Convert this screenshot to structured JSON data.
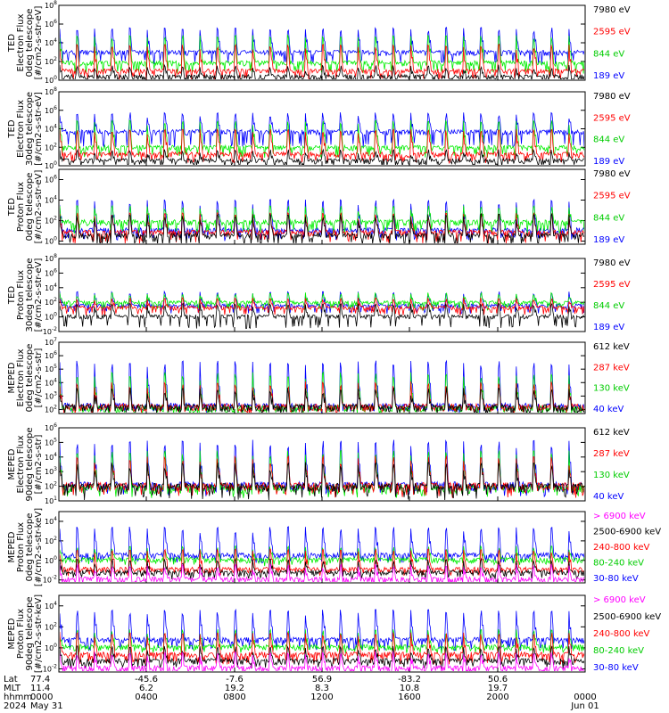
{
  "colors": {
    "black": "#000000",
    "red": "#ff0000",
    "green": "#00ee00",
    "blue": "#0000ff",
    "magenta": "#ff00ff"
  },
  "chart_data": [
    {
      "type": "line",
      "ylabel": [
        "TED",
        "Electron Flux",
        "0deg telescope",
        "[#/cm2-s-str-eV]"
      ],
      "yscale": "log",
      "yticks": [
        "10^0",
        "10^2",
        "10^4",
        "10^6",
        "10^8"
      ],
      "ylim": [
        1,
        100000000
      ],
      "series": [
        {
          "name": "7980 eV",
          "color": "black",
          "base": 2,
          "spike": 30,
          "low": 1,
          "values": [
            2,
            4,
            30,
            2,
            3,
            25,
            2,
            5,
            40,
            3,
            2,
            20
          ]
        },
        {
          "name": "2595 eV",
          "color": "red",
          "base": 8,
          "spike": 5000,
          "low": 2,
          "values": [
            8,
            20,
            5000,
            10,
            12,
            4000,
            8,
            30,
            6000,
            9,
            10,
            3000
          ]
        },
        {
          "name": "844 eV",
          "color": "green",
          "base": 60,
          "spike": 50000,
          "low": 10,
          "values": [
            60,
            200,
            50000,
            70,
            80,
            40000,
            60,
            300,
            60000,
            70,
            60,
            30000
          ]
        },
        {
          "name": "189 eV",
          "color": "blue",
          "base": 800,
          "spike": 300000,
          "low": 100,
          "values": [
            800,
            2000,
            300000,
            900,
            1000,
            200000,
            800,
            3000,
            400000,
            900,
            800,
            150000
          ]
        }
      ]
    },
    {
      "type": "line",
      "ylabel": [
        "TED",
        "Electron Flux",
        "30deg telescope",
        "[#/cm2-s-str-eV]"
      ],
      "yscale": "log",
      "yticks": [
        "10^0",
        "10^2",
        "10^4",
        "10^6",
        "10^8"
      ],
      "ylim": [
        1,
        100000000
      ],
      "series": [
        {
          "name": "7980 eV",
          "color": "black",
          "base": 3,
          "spike": 40,
          "low": 1,
          "values": [
            3,
            5,
            40,
            3,
            4,
            30,
            3,
            6,
            45,
            4,
            3,
            25
          ]
        },
        {
          "name": "2595 eV",
          "color": "red",
          "base": 15,
          "spike": 6000,
          "low": 4,
          "values": [
            15,
            40,
            6000,
            18,
            20,
            5000,
            15,
            50,
            7000,
            16,
            15,
            4000
          ]
        },
        {
          "name": "844 eV",
          "color": "green",
          "base": 80,
          "spike": 60000,
          "low": 15,
          "values": [
            80,
            250,
            60000,
            90,
            100,
            50000,
            80,
            400,
            70000,
            90,
            80,
            40000
          ]
        },
        {
          "name": "189 eV",
          "color": "blue",
          "base": 4000,
          "spike": 400000,
          "low": 200,
          "values": [
            4000,
            6000,
            400000,
            3000,
            4500,
            300000,
            3500,
            7000,
            500000,
            3800,
            4000,
            250000
          ]
        }
      ]
    },
    {
      "type": "line",
      "ylabel": [
        "TED",
        "Proton Flux",
        "0deg telescope",
        "[#/cm2-s-str-eV]"
      ],
      "yscale": "log",
      "yticks": [
        "10^0",
        "10^2",
        "10^4",
        "10^6"
      ],
      "ylim": [
        0.5,
        10000000
      ],
      "series": [
        {
          "name": "7980 eV",
          "color": "black",
          "base": 3,
          "spike": 300,
          "low": 0.6,
          "values": [
            3,
            5,
            300,
            4,
            3,
            200,
            3,
            6,
            400,
            4,
            3,
            150
          ]
        },
        {
          "name": "2595 eV",
          "color": "red",
          "base": 6,
          "spike": 400,
          "low": 1,
          "values": [
            6,
            10,
            400,
            7,
            6,
            300,
            6,
            12,
            500,
            7,
            6,
            250
          ]
        },
        {
          "name": "844 eV",
          "color": "green",
          "base": 60,
          "spike": 2000,
          "low": 10,
          "values": [
            60,
            150,
            2000,
            80,
            60,
            1500,
            60,
            200,
            2500,
            70,
            60,
            1200
          ]
        },
        {
          "name": "189 eV",
          "color": "blue",
          "base": 10,
          "spike": 8000,
          "low": 2,
          "values": [
            10,
            30,
            8000,
            12,
            10,
            6000,
            10,
            40,
            10000,
            12,
            10,
            5000
          ]
        }
      ]
    },
    {
      "type": "line",
      "ylabel": [
        "TED",
        "Proton Flux",
        "30deg telescope",
        "[#/cm2-s-str-eV]"
      ],
      "yscale": "log",
      "yticks": [
        "10^-2",
        "10^0",
        "10^2",
        "10^4",
        "10^6",
        "10^8"
      ],
      "ylim": [
        0.01,
        100000000
      ],
      "series": [
        {
          "name": "7980 eV",
          "color": "black",
          "base": 1,
          "spike": 50,
          "low": 0.05,
          "values": [
            1,
            2,
            50,
            1,
            1,
            40,
            1,
            3,
            60,
            1,
            1,
            30
          ]
        },
        {
          "name": "2595 eV",
          "color": "red",
          "base": 15,
          "spike": 300,
          "low": 3,
          "values": [
            15,
            25,
            300,
            15,
            15,
            250,
            15,
            30,
            350,
            15,
            15,
            200
          ]
        },
        {
          "name": "844 eV",
          "color": "green",
          "base": 80,
          "spike": 1500,
          "low": 15,
          "values": [
            80,
            150,
            1500,
            90,
            80,
            1200,
            80,
            200,
            1800,
            90,
            80,
            1000
          ]
        },
        {
          "name": "189 eV",
          "color": "blue",
          "base": 30,
          "spike": 2000,
          "low": 5,
          "values": [
            30,
            60,
            2000,
            35,
            30,
            1500,
            30,
            80,
            2500,
            35,
            30,
            1200
          ]
        }
      ]
    },
    {
      "type": "line",
      "ylabel": [
        "MEPED",
        "Electron Flux",
        "0deg telescope",
        "[#/cm2-s-str]"
      ],
      "yscale": "log",
      "yticks": [
        "10^2",
        "10^3",
        "10^4",
        "10^5",
        "10^6",
        "10^7"
      ],
      "ylim": [
        50,
        10000000
      ],
      "series": [
        {
          "name": "612 keV",
          "color": "black",
          "base": 120,
          "spike": 3000,
          "low": 80,
          "values": [
            120,
            200,
            3000,
            130,
            120,
            2500,
            120,
            300,
            4000,
            130,
            120,
            2000
          ]
        },
        {
          "name": "287 keV",
          "color": "red",
          "base": 130,
          "spike": 8000,
          "low": 90,
          "values": [
            130,
            300,
            8000,
            140,
            130,
            6000,
            130,
            400,
            10000,
            140,
            130,
            5000
          ]
        },
        {
          "name": "130 keV",
          "color": "green",
          "base": 100,
          "spike": 40000,
          "low": 80,
          "values": [
            100,
            500,
            40000,
            110,
            100,
            30000,
            100,
            600,
            50000,
            110,
            100,
            25000
          ]
        },
        {
          "name": "40 keV",
          "color": "blue",
          "base": 150,
          "spike": 300000,
          "low": 100,
          "values": [
            150,
            1000,
            300000,
            160,
            150,
            200000,
            150,
            1500,
            400000,
            160,
            150,
            150000
          ]
        }
      ]
    },
    {
      "type": "line",
      "ylabel": [
        "MEPED",
        "Electron Flux",
        "90deg telescope",
        "[#/cm2-s-str]"
      ],
      "yscale": "log",
      "yticks": [
        "10^1",
        "10^2",
        "10^3",
        "10^4",
        "10^5",
        "10^6"
      ],
      "ylim": [
        10,
        1000000
      ],
      "series": [
        {
          "name": "612 keV",
          "color": "black",
          "base": 80,
          "spike": 3000,
          "low": 20,
          "values": [
            80,
            300,
            3000,
            90,
            80,
            2500,
            80,
            400,
            4000,
            90,
            80,
            2000
          ]
        },
        {
          "name": "287 keV",
          "color": "red",
          "base": 90,
          "spike": 8000,
          "low": 30,
          "values": [
            90,
            500,
            8000,
            100,
            90,
            6000,
            90,
            600,
            10000,
            100,
            90,
            5000
          ]
        },
        {
          "name": "130 keV",
          "color": "green",
          "base": 60,
          "spike": 20000,
          "low": 30,
          "values": [
            60,
            800,
            20000,
            70,
            60,
            15000,
            60,
            1000,
            25000,
            70,
            60,
            12000
          ]
        },
        {
          "name": "40 keV",
          "color": "blue",
          "base": 100,
          "spike": 100000,
          "low": 40,
          "values": [
            100,
            2000,
            100000,
            110,
            100,
            80000,
            100,
            3000,
            150000,
            110,
            100,
            60000
          ]
        }
      ]
    },
    {
      "type": "line",
      "ylabel": [
        "MEPED",
        "Proton Flux",
        "0deg telescope",
        "[#/cm2-s-str-keV]"
      ],
      "yscale": "log",
      "yticks": [
        "10^-2",
        "10^0",
        "10^2",
        "10^4"
      ],
      "ylim": [
        0.005,
        100000
      ],
      "series": [
        {
          "name": "> 6900 keV",
          "color": "magenta",
          "base": 0.01,
          "spike": 0.3,
          "low": 0.005,
          "values": [
            0.01,
            0.01,
            0.3,
            0.01,
            0.01,
            0.2,
            0.01,
            0.01,
            0.3,
            0.01,
            0.01,
            0.2
          ]
        },
        {
          "name": "2500-6900 keV",
          "color": "black",
          "base": 0.05,
          "spike": 1,
          "low": 0.02,
          "values": [
            0.05,
            0.1,
            1,
            0.05,
            0.05,
            0.8,
            0.05,
            0.1,
            1,
            0.05,
            0.05,
            0.7
          ]
        },
        {
          "name": "240-800 keV",
          "color": "red",
          "base": 0.1,
          "spike": 10,
          "low": 0.05,
          "values": [
            0.1,
            0.3,
            10,
            0.1,
            0.1,
            8,
            0.1,
            0.4,
            12,
            0.1,
            0.1,
            6
          ]
        },
        {
          "name": "80-240 keV",
          "color": "green",
          "base": 1,
          "spike": 20,
          "low": 0.5,
          "values": [
            1,
            2,
            20,
            1,
            1,
            15,
            1,
            3,
            25,
            1,
            1,
            12
          ]
        },
        {
          "name": "30-80 keV",
          "color": "blue",
          "base": 3,
          "spike": 2000,
          "low": 1,
          "values": [
            3,
            10,
            2000,
            3,
            3,
            1500,
            3,
            15,
            3000,
            3,
            3,
            1200
          ]
        }
      ]
    },
    {
      "type": "line",
      "ylabel": [
        "MEPED",
        "Proton Flux",
        "90deg telescope",
        "[#/cm2-s-str-keV]"
      ],
      "yscale": "log",
      "yticks": [
        "10^-2",
        "10^0",
        "10^2",
        "10^4"
      ],
      "ylim": [
        0.005,
        100000
      ],
      "series": [
        {
          "name": "> 6900 keV",
          "color": "magenta",
          "base": 0.01,
          "spike": 0.3,
          "low": 0.005,
          "values": [
            0.01,
            0.01,
            0.3,
            0.01,
            0.01,
            0.2,
            0.01,
            0.01,
            0.3,
            0.01,
            0.01,
            0.2
          ]
        },
        {
          "name": "2500-6900 keV",
          "color": "black",
          "base": 0.05,
          "spike": 1,
          "low": 0.02,
          "values": [
            0.05,
            0.1,
            1,
            0.05,
            0.05,
            0.8,
            0.05,
            0.1,
            1,
            0.05,
            0.05,
            0.7
          ]
        },
        {
          "name": "240-800 keV",
          "color": "red",
          "base": 0.2,
          "spike": 20,
          "low": 0.05,
          "values": [
            0.2,
            0.5,
            20,
            0.2,
            0.2,
            15,
            0.2,
            0.6,
            25,
            0.2,
            0.2,
            12
          ]
        },
        {
          "name": "80-240 keV",
          "color": "green",
          "base": 1,
          "spike": 40,
          "low": 0.5,
          "values": [
            1,
            3,
            40,
            1,
            1,
            30,
            1,
            4,
            50,
            1,
            1,
            25
          ]
        },
        {
          "name": "30-80 keV",
          "color": "blue",
          "base": 5,
          "spike": 3000,
          "low": 1,
          "values": [
            5,
            20,
            3000,
            5,
            5,
            2500,
            5,
            25,
            4000,
            5,
            5,
            2000
          ]
        }
      ]
    }
  ],
  "x_axis": {
    "row_labels": [
      "Lat",
      "MLT",
      "hhmm",
      "2024"
    ],
    "ticks": [
      {
        "lat": "77.4",
        "mlt": "11.4",
        "hhmm": "0000",
        "date": "May 31"
      },
      {
        "lat": "-45.6",
        "mlt": "6.2",
        "hhmm": "0400",
        "date": ""
      },
      {
        "lat": "-7.6",
        "mlt": "19.2",
        "hhmm": "0800",
        "date": ""
      },
      {
        "lat": "56.9",
        "mlt": "8.3",
        "hhmm": "1200",
        "date": ""
      },
      {
        "lat": "-83.2",
        "mlt": "10.8",
        "hhmm": "1600",
        "date": ""
      },
      {
        "lat": "50.6",
        "mlt": "19.7",
        "hhmm": "2000",
        "date": ""
      },
      {
        "lat": "",
        "mlt": "",
        "hhmm": "0000",
        "date": "Jun 01"
      }
    ]
  }
}
